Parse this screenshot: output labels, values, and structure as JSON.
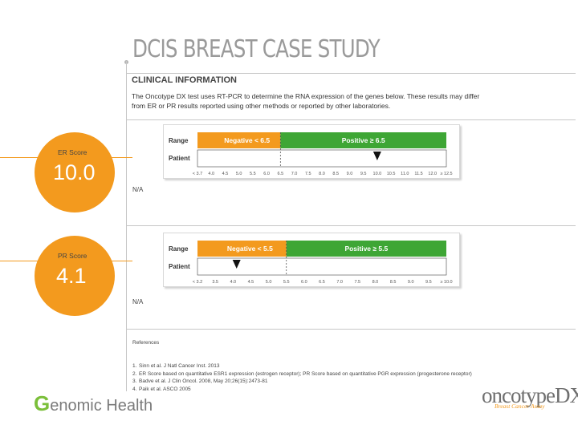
{
  "title": "DCIS BREAST CASE STUDY",
  "clinical": {
    "heading": "CLINICAL INFORMATION",
    "text": "The Oncotype DX test uses RT-PCR to determine the RNA expression of the genes below. These results may differ from ER or PR results reported using other methods or reported by other laboratories."
  },
  "er": {
    "label": "ER Score",
    "value": "10.0",
    "na": "N/A",
    "chart": {
      "range_label": "Range",
      "patient_label": "Patient",
      "negative_label": "Negative < 6.5",
      "positive_label": "Positive ≥ 6.5",
      "ticks": [
        "< 3.7",
        "4.0",
        "4.5",
        "5.0",
        "5.5",
        "6.0",
        "6.5",
        "7.0",
        "7.5",
        "8.0",
        "8.5",
        "9.0",
        "9.5",
        "10.0",
        "10.5",
        "11.0",
        "11.5",
        "12.0",
        "≥ 12.5"
      ],
      "threshold": 6.5,
      "patient_value": 10.0,
      "negative_color": "#f39a1e",
      "positive_color": "#3ea635"
    }
  },
  "pr": {
    "label": "PR Score",
    "value": "4.1",
    "na": "N/A",
    "chart": {
      "range_label": "Range",
      "patient_label": "Patient",
      "negative_label": "Negative < 5.5",
      "positive_label": "Positive ≥ 5.5",
      "ticks": [
        "< 3.2",
        "3.5",
        "4.0",
        "4.5",
        "5.0",
        "5.5",
        "6.0",
        "6.5",
        "7.0",
        "7.5",
        "8.0",
        "8.5",
        "9.0",
        "9.5",
        "≥ 10.0"
      ],
      "threshold": 5.5,
      "patient_value": 4.1,
      "negative_color": "#f39a1e",
      "positive_color": "#3ea635"
    }
  },
  "references": {
    "heading": "References",
    "items": [
      {
        "num": "1.",
        "text": "Sinn et al. J Natl Cancer Inst. 2013"
      },
      {
        "num": "2.",
        "text": "ER Score based on quantitative ESR1 expression (estrogen receptor); PR Score based on quantitative PGR expression (progesterone receptor)"
      },
      {
        "num": "3.",
        "text": "Badve et al. J Clin Oncol. 2008, May 20;26(15):2473-81"
      },
      {
        "num": "4.",
        "text": "Paik et al. ASCO 2005"
      }
    ]
  },
  "logos": {
    "genomic_health": "enomic Health",
    "genomic_health_g": "G",
    "oncotype": "oncotypeDX",
    "oncotype_tm": "®",
    "oncotype_sub": "Breast Cancer Assay"
  }
}
